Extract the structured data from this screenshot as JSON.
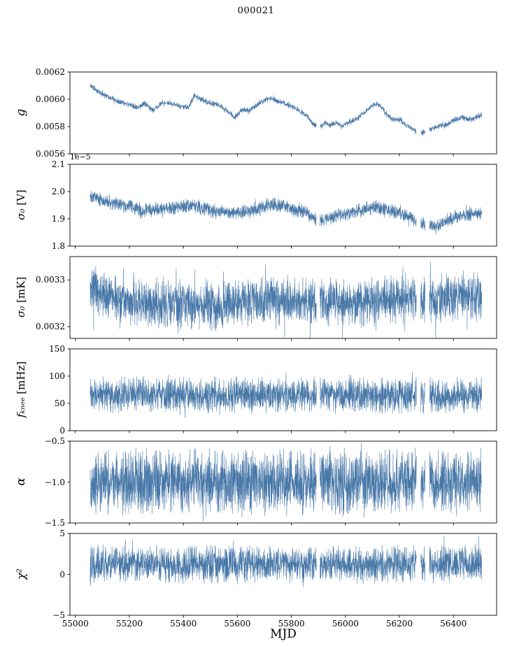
{
  "chart_data": {
    "type": "line",
    "title": "000021",
    "xlabel": "MJD",
    "line_color": "#4878a8",
    "frame_color": "#000000",
    "xlim": [
      54980,
      56560
    ],
    "x_data_range": [
      55055,
      56505
    ],
    "xticks": [
      {
        "label": "55000",
        "value": 55000
      },
      {
        "label": "55200",
        "value": 55200
      },
      {
        "label": "55400",
        "value": 55400
      },
      {
        "label": "55600",
        "value": 55600
      },
      {
        "label": "55800",
        "value": 55800
      },
      {
        "label": "56000",
        "value": 56000
      },
      {
        "label": "56200",
        "value": 56200
      },
      {
        "label": "56400",
        "value": 56400
      }
    ],
    "gaps": [
      [
        55893,
        55906
      ],
      [
        56263,
        56279
      ],
      [
        56295,
        56311
      ]
    ],
    "panels": [
      {
        "name": "g",
        "ylabel_math": "g",
        "ylabel_unit": "",
        "offset_text": "",
        "ylim": [
          0.0056,
          0.0062
        ],
        "yticks": [
          {
            "label": "0.0062",
            "value": 0.0062
          },
          {
            "label": "0.0060",
            "value": 0.006
          },
          {
            "label": "0.0058",
            "value": 0.0058
          },
          {
            "label": "0.0056",
            "value": 0.0056
          }
        ],
        "style": {
          "points": 1600,
          "noise": 2e-05,
          "spike_prob": 0.01,
          "spike_scale": 1.4,
          "line_width": 0.8,
          "seed": 11
        },
        "trend": [
          [
            55060,
            0.0061
          ],
          [
            55080,
            0.00606
          ],
          [
            55110,
            0.00603
          ],
          [
            55150,
            0.00599
          ],
          [
            55190,
            0.00597
          ],
          [
            55230,
            0.00594
          ],
          [
            55255,
            0.00597
          ],
          [
            55285,
            0.00592
          ],
          [
            55320,
            0.00597
          ],
          [
            55350,
            0.00597
          ],
          [
            55385,
            0.00595
          ],
          [
            55420,
            0.00594
          ],
          [
            55440,
            0.00603
          ],
          [
            55465,
            0.006
          ],
          [
            55495,
            0.00597
          ],
          [
            55530,
            0.00596
          ],
          [
            55570,
            0.0059
          ],
          [
            55590,
            0.00587
          ],
          [
            55615,
            0.00592
          ],
          [
            55645,
            0.00592
          ],
          [
            55675,
            0.00596
          ],
          [
            55705,
            0.006
          ],
          [
            55725,
            0.00601
          ],
          [
            55755,
            0.00598
          ],
          [
            55790,
            0.00596
          ],
          [
            55825,
            0.00592
          ],
          [
            55858,
            0.00588
          ],
          [
            55880,
            0.00582
          ],
          [
            55905,
            0.0058
          ],
          [
            55925,
            0.00583
          ],
          [
            55945,
            0.00581
          ],
          [
            55965,
            0.00583
          ],
          [
            55985,
            0.0058
          ],
          [
            56010,
            0.00583
          ],
          [
            56045,
            0.00586
          ],
          [
            56080,
            0.00592
          ],
          [
            56105,
            0.00596
          ],
          [
            56125,
            0.00596
          ],
          [
            56150,
            0.0059
          ],
          [
            56175,
            0.00585
          ],
          [
            56200,
            0.00585
          ],
          [
            56225,
            0.00581
          ],
          [
            56250,
            0.00578
          ],
          [
            56275,
            0.00575
          ],
          [
            56300,
            0.00576
          ],
          [
            56325,
            0.00579
          ],
          [
            56350,
            0.00581
          ],
          [
            56375,
            0.00581
          ],
          [
            56405,
            0.00585
          ],
          [
            56430,
            0.00587
          ],
          [
            56455,
            0.00585
          ],
          [
            56480,
            0.00586
          ],
          [
            56505,
            0.00589
          ]
        ]
      },
      {
        "name": "sigma0_V",
        "ylabel_math": "σ₀",
        "ylabel_unit": " [V]",
        "offset_text": "1e−5",
        "ylim": [
          1.8,
          2.1
        ],
        "yticks": [
          {
            "label": "2.1",
            "value": 2.1
          },
          {
            "label": "2.0",
            "value": 2.0
          },
          {
            "label": "1.9",
            "value": 1.9
          },
          {
            "label": "1.8",
            "value": 1.8
          }
        ],
        "style": {
          "points": 2600,
          "noise": 0.03,
          "spike_prob": 0.03,
          "spike_scale": 1.5,
          "line_width": 0.6,
          "seed": 22
        },
        "trend": [
          [
            55060,
            1.99
          ],
          [
            55100,
            1.965
          ],
          [
            55150,
            1.955
          ],
          [
            55200,
            1.945
          ],
          [
            55250,
            1.93
          ],
          [
            55300,
            1.935
          ],
          [
            55360,
            1.94
          ],
          [
            55430,
            1.95
          ],
          [
            55470,
            1.94
          ],
          [
            55520,
            1.928
          ],
          [
            55570,
            1.922
          ],
          [
            55620,
            1.925
          ],
          [
            55670,
            1.935
          ],
          [
            55720,
            1.952
          ],
          [
            55760,
            1.95
          ],
          [
            55800,
            1.938
          ],
          [
            55850,
            1.925
          ],
          [
            55890,
            1.9
          ],
          [
            55920,
            1.893
          ],
          [
            55960,
            1.91
          ],
          [
            56010,
            1.92
          ],
          [
            56060,
            1.932
          ],
          [
            56110,
            1.945
          ],
          [
            56160,
            1.932
          ],
          [
            56210,
            1.918
          ],
          [
            56250,
            1.9
          ],
          [
            56290,
            1.878
          ],
          [
            56330,
            1.873
          ],
          [
            56370,
            1.89
          ],
          [
            56410,
            1.908
          ],
          [
            56460,
            1.918
          ],
          [
            56505,
            1.92
          ]
        ]
      },
      {
        "name": "sigma0_mK",
        "ylabel_math": "σ₀",
        "ylabel_unit": " [mK]",
        "offset_text": "",
        "ylim": [
          0.003175,
          0.00335
        ],
        "yticks": [
          {
            "label": "0.0033",
            "value": 0.0033
          },
          {
            "label": "0.0032",
            "value": 0.0032
          }
        ],
        "style": {
          "points": 2600,
          "noise": 5.8e-05,
          "spike_prob": 0.05,
          "spike_scale": 1.65,
          "line_width": 0.6,
          "seed": 33
        },
        "trend": [
          [
            55060,
            0.003278
          ],
          [
            55110,
            0.003268
          ],
          [
            55160,
            0.003258
          ],
          [
            55220,
            0.00325
          ],
          [
            55320,
            0.003246
          ],
          [
            55420,
            0.003246
          ],
          [
            55520,
            0.003242
          ],
          [
            55620,
            0.003254
          ],
          [
            55720,
            0.003258
          ],
          [
            55820,
            0.003254
          ],
          [
            55920,
            0.00325
          ],
          [
            56020,
            0.00325
          ],
          [
            56120,
            0.003256
          ],
          [
            56220,
            0.00326
          ],
          [
            56320,
            0.00326
          ],
          [
            56420,
            0.003264
          ],
          [
            56505,
            0.003264
          ]
        ]
      },
      {
        "name": "f_knee",
        "ylabel_math": "fₖₙₑₑ",
        "ylabel_unit": " [mHz]",
        "offset_text": "",
        "ylim": [
          0,
          150
        ],
        "yticks": [
          {
            "label": "150",
            "value": 150
          },
          {
            "label": "100",
            "value": 100
          },
          {
            "label": "50",
            "value": 50
          },
          {
            "label": "0",
            "value": 0
          }
        ],
        "style": {
          "points": 2600,
          "noise": 36,
          "spike_prob": 0.03,
          "spike_scale": 1.35,
          "line_width": 0.6,
          "seed": 44
        },
        "trend": [
          [
            55055,
            66
          ],
          [
            55300,
            67
          ],
          [
            55600,
            64
          ],
          [
            55900,
            66
          ],
          [
            56200,
            64
          ],
          [
            56505,
            66
          ]
        ]
      },
      {
        "name": "alpha",
        "ylabel_math": "α",
        "ylabel_unit": "",
        "offset_text": "",
        "ylim": [
          -1.5,
          -0.5
        ],
        "yticks": [
          {
            "label": "−0.5",
            "value": -0.5
          },
          {
            "label": "−1.0",
            "value": -1.0
          },
          {
            "label": "−1.5",
            "value": -1.5
          }
        ],
        "style": {
          "points": 2600,
          "noise": 0.44,
          "spike_prob": 0.02,
          "spike_scale": 1.3,
          "line_width": 0.6,
          "seed": 55
        },
        "trend": [
          [
            55055,
            -1.0
          ],
          [
            56505,
            -1.0
          ]
        ]
      },
      {
        "name": "chi2",
        "ylabel_math": "χ²",
        "ylabel_unit": "",
        "offset_text": "",
        "ylim": [
          -5,
          5
        ],
        "yticks": [
          {
            "label": "5",
            "value": 5
          },
          {
            "label": "0",
            "value": 0
          },
          {
            "label": "−5",
            "value": -5
          }
        ],
        "style": {
          "points": 2600,
          "noise": 2.5,
          "spike_prob": 0.02,
          "spike_scale": 1.45,
          "line_width": 0.6,
          "seed": 66
        },
        "trend": [
          [
            55055,
            1.3
          ],
          [
            55400,
            1.2
          ],
          [
            55800,
            1.3
          ],
          [
            56100,
            1.2
          ],
          [
            56505,
            1.35
          ]
        ]
      }
    ]
  }
}
